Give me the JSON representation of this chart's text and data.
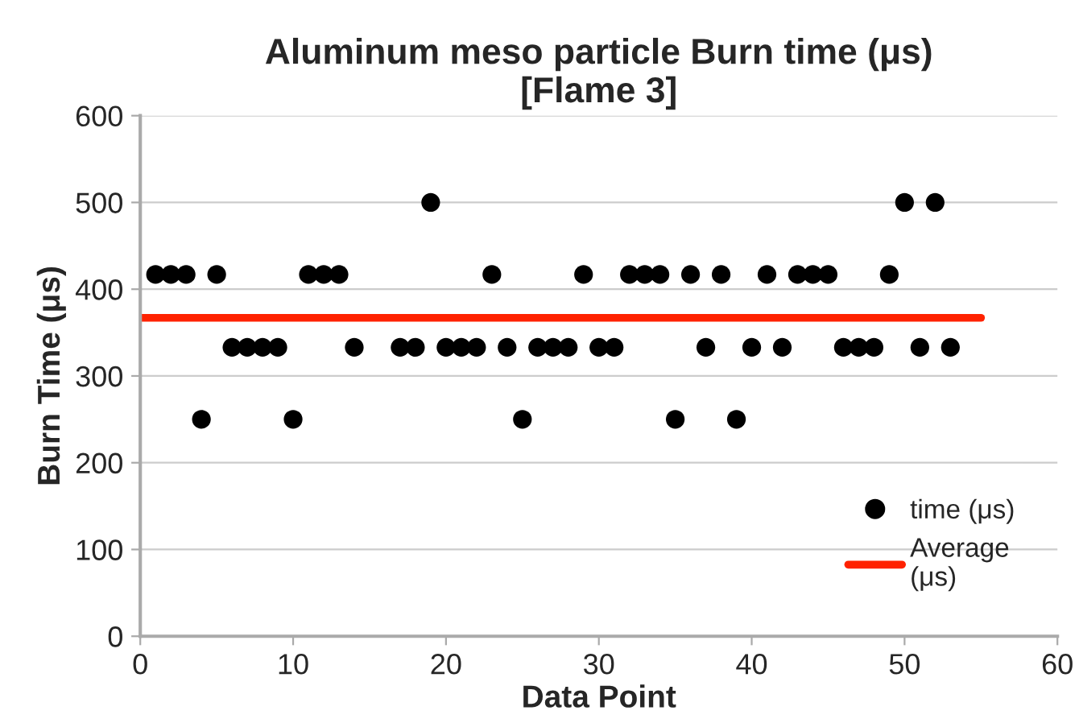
{
  "chart_data": {
    "type": "scatter",
    "title": "Aluminum meso particle Burn time (μs)\n[Flame 3]",
    "xlabel": "Data Point",
    "ylabel": "Burn Time (μs)",
    "series": [
      {
        "name": "time (μs)",
        "marker": "circle",
        "color": "#000000",
        "x": [
          1,
          2,
          3,
          4,
          5,
          6,
          7,
          8,
          9,
          10,
          11,
          12,
          13,
          14,
          17,
          18,
          19,
          20,
          21,
          22,
          23,
          24,
          25,
          26,
          27,
          28,
          29,
          30,
          31,
          32,
          33,
          34,
          35,
          36,
          37,
          38,
          39,
          40,
          41,
          42,
          43,
          44,
          45,
          46,
          47,
          48,
          49,
          50,
          51,
          52,
          53
        ],
        "values": [
          417,
          417,
          417,
          250,
          417,
          333,
          333,
          333,
          333,
          250,
          417,
          417,
          417,
          333,
          333,
          333,
          500,
          333,
          333,
          333,
          417,
          333,
          250,
          333,
          333,
          333,
          417,
          333,
          333,
          417,
          417,
          417,
          250,
          417,
          333,
          417,
          250,
          333,
          417,
          333,
          417,
          417,
          417,
          333,
          333,
          333,
          417,
          500,
          333,
          500,
          333
        ]
      },
      {
        "name": "Average\n(μs)",
        "type": "line",
        "marker": "none",
        "color": "#ff2200",
        "x": [
          0,
          55
        ],
        "values": [
          367,
          367
        ]
      }
    ],
    "xlim": [
      0,
      60
    ],
    "xticks": [
      0,
      10,
      20,
      30,
      40,
      50,
      60
    ],
    "ylim": [
      0,
      600
    ],
    "yticks": [
      0,
      100,
      200,
      300,
      400,
      500,
      600
    ],
    "grid": "y",
    "legend": "bottom right"
  }
}
